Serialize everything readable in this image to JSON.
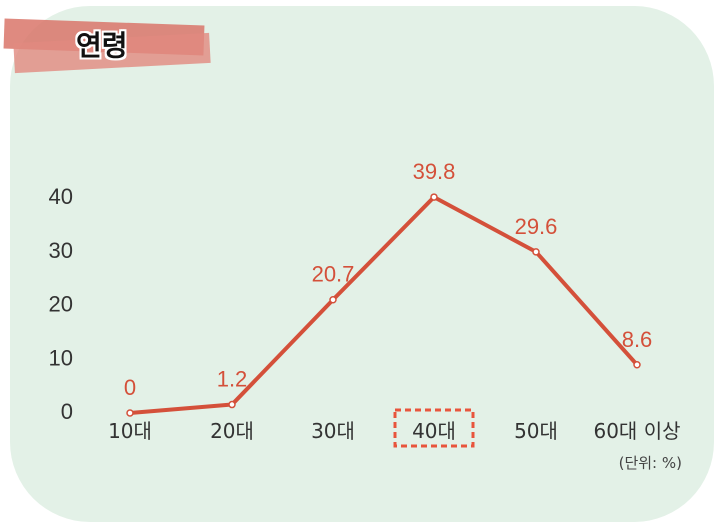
{
  "header": {
    "title": "연령"
  },
  "unit_note": "(단위: %)",
  "colors": {
    "line": "#d4503a",
    "panel": "#e3f1e7",
    "highlight": "#e8553d"
  },
  "chart_data": {
    "type": "line",
    "title": "연령",
    "categories": [
      "10대",
      "20대",
      "30대",
      "40대",
      "50대",
      "60대 이상"
    ],
    "values": [
      0,
      1.2,
      20.7,
      39.8,
      29.6,
      8.6
    ],
    "data_labels": [
      "0",
      "1.2",
      "20.7",
      "39.8",
      "29.6",
      "8.6"
    ],
    "y_ticks": [
      "0",
      "10",
      "20",
      "30",
      "40"
    ],
    "ylim": [
      0,
      40
    ],
    "highlighted_category": "40대",
    "grid": false,
    "xlabel": "",
    "ylabel": ""
  }
}
